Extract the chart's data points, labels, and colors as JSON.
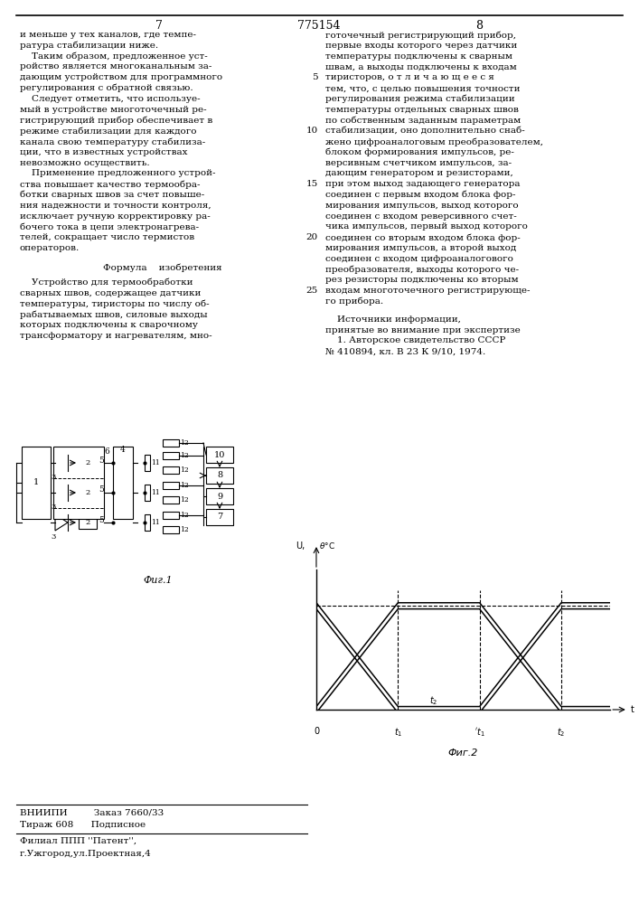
{
  "page_number_left": "7",
  "page_number_center": "775154",
  "page_number_right": "8",
  "bg_color": "#ffffff",
  "text_color": "#000000",
  "left_column_text": [
    "и меньше у тех каналов, где темпе-",
    "ратура стабилизации ниже.",
    "    Таким образом, предложенное уст-",
    "ройство является многоканальным за-",
    "дающим устройством для программного",
    "регулирования с обратной связью.",
    "    Следует отметить, что используе-",
    "мый в устройстве многоточечный ре-",
    "гистрирующий прибор обеспечивает в",
    "режиме стабилизации для каждого",
    "канала свою температуру стабилиза-",
    "ции, что в известных устройствах",
    "невозможно осуществить.",
    "    Применение предложенного устрой-",
    "ства повышает качество термообра-",
    "ботки сварных швов за счет повыше-",
    "ния надежности и точности контроля,",
    "исключает ручную корректировку ра-",
    "бочего тока в цепи электронагрева-",
    "телей, сокращает число термистов",
    "операторов."
  ],
  "formula_header": "Формула    изобретения",
  "formula_text": [
    "    Устройство для термообработки",
    "сварных швов, содержащее датчики",
    "температуры, тиристоры по числу об-",
    "рабатываемых швов, силовые выходы",
    "которых подключены к сварочному",
    "трансформатору и нагревателям, мно-"
  ],
  "right_line_numbers": [
    "5",
    "10",
    "15",
    "20",
    "25"
  ],
  "right_column_text": [
    "готочечный регистрирующий прибор,",
    "первые входы которого через датчики",
    "температуры подключены к сварным",
    "швам, а выходы подключены к входам",
    "тиристоров, о т л и ч а ю щ е е с я",
    "тем, что, с целью повышения точности",
    "регулирования режима стабилизации",
    "температуры отдельных сварных швов",
    "по собственным заданным параметрам",
    "стабилизации, оно дополнительно снаб-",
    "жено цифроаналоговым преобразователем,",
    "блоком формирования импульсов, ре-",
    "версивным счетчиком импульсов, за-",
    "дающим генератором и резисторами,",
    "при этом выход задающего генератора",
    "соединен с первым входом блока фор-",
    "мирования импульсов, выход которого",
    "соединен с входом реверсивного счет-",
    "чика импульсов, первый выход которого",
    "соединен со вторым входом блока фор-",
    "мирования импульсов, а второй выход",
    "соединен с входом цифроаналогового",
    "преобразователя, выходы которого че-",
    "рез резисторы подключены ко вторым",
    "входам многоточечного регистрирующе-",
    "го прибора."
  ],
  "sources_text": [
    "    Источники информации,",
    "принятые во внимание при экспертизе",
    "    1. Авторское свидетельство СССР",
    "№ 410894, кл. В 23 К 9/10, 1974."
  ],
  "fig1_label": "Фиг.1",
  "fig2_label": "Фиг.2",
  "bottom_line1": "ВНИИПИ         Заказ 7660/33",
  "bottom_line2": "Тираж 608      Подписное",
  "bottom_line3": "Филиал ППП ''Патент'',",
  "bottom_line4": "г.Ужгород,ул.Проектная,4"
}
